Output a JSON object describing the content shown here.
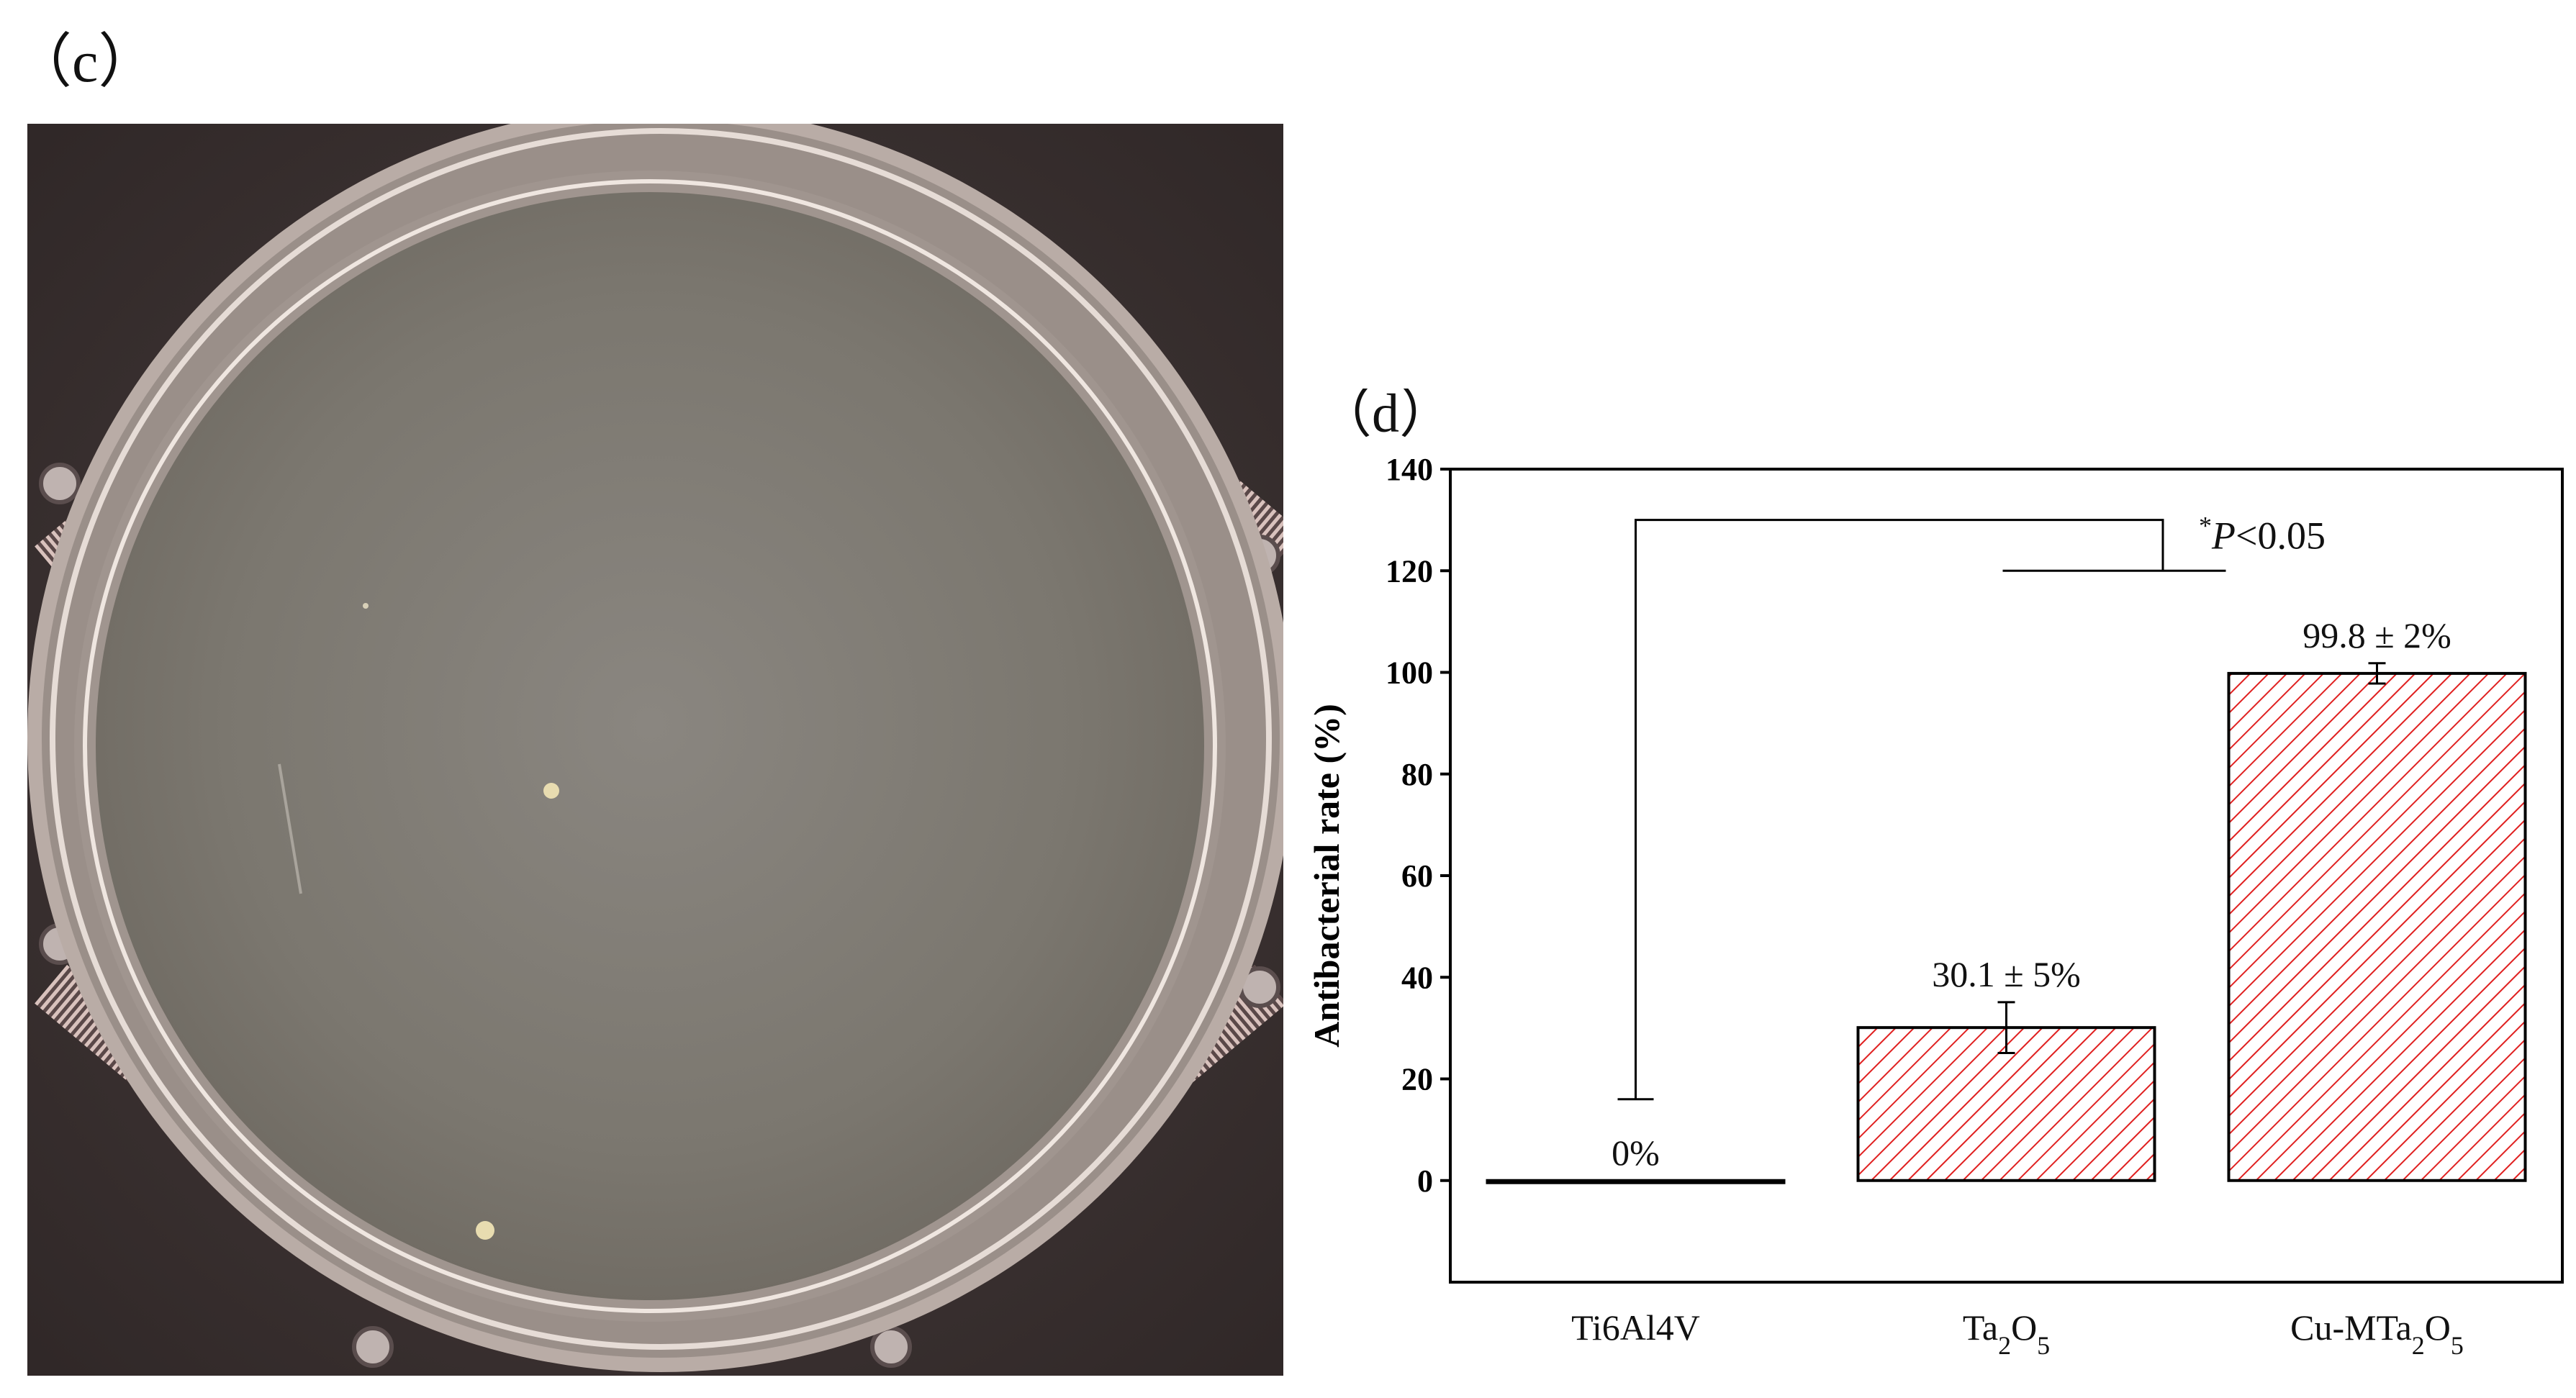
{
  "panels": {
    "c_label": "（c）",
    "d_label": "（d）"
  },
  "colors": {
    "bar_hatch": "#e02020",
    "axis": "#000000",
    "photo_background": "#3b3232",
    "agar": "#7e7a73"
  },
  "chart_data": {
    "type": "bar",
    "categories": [
      {
        "base": "Ti6Al4V",
        "parts": [
          [
            "Ti6Al4V",
            ""
          ]
        ]
      },
      {
        "base": "Ta2O5",
        "parts": [
          [
            "Ta",
            ""
          ],
          [
            "2",
            "sub"
          ],
          [
            "O",
            ""
          ],
          [
            "5",
            "sub"
          ]
        ]
      },
      {
        "base": "Cu-MTa2O5",
        "parts": [
          [
            "Cu-MTa",
            ""
          ],
          [
            "2",
            "sub"
          ],
          [
            "O",
            ""
          ],
          [
            "5",
            "sub"
          ]
        ]
      }
    ],
    "values": [
      0,
      30.1,
      99.8
    ],
    "errors": [
      0,
      5,
      2
    ],
    "data_labels": [
      "0%",
      "30.1 ± 5%",
      "99.8 ± 2%"
    ],
    "ylabel": "Antibacterial rate (%)",
    "ylim": [
      -20,
      140
    ],
    "yticks": [
      0,
      20,
      40,
      60,
      80,
      100,
      120,
      140
    ],
    "significance": {
      "text_star": "*",
      "text_p": "P",
      "text_rest": "<0.05",
      "from_category": 0,
      "to_category": 2
    },
    "grid": false
  }
}
